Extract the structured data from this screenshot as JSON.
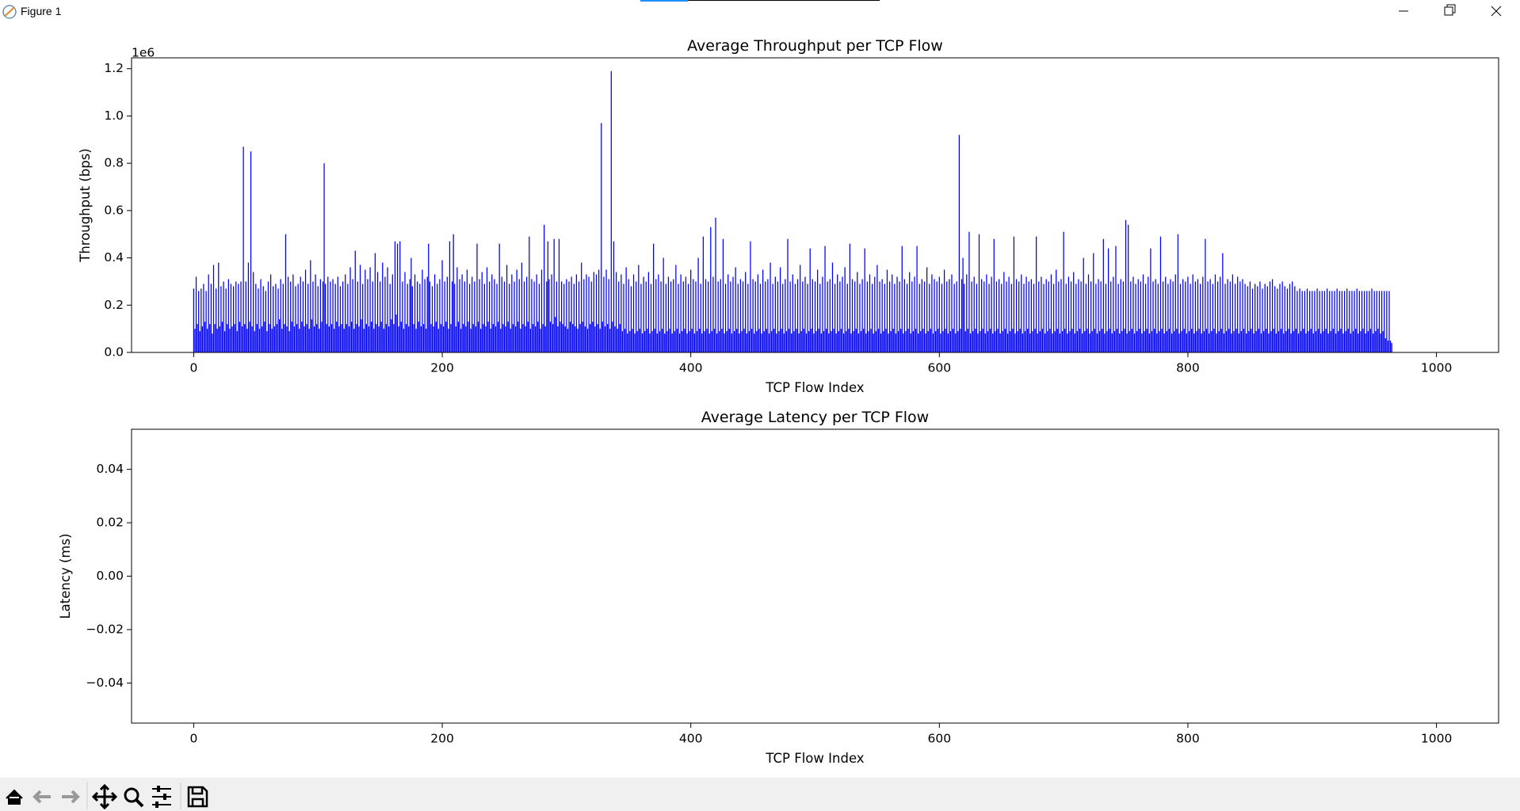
{
  "window": {
    "title": "Figure 1"
  },
  "chart_data": [
    {
      "type": "bar",
      "title": "Average Throughput per TCP Flow",
      "xlabel": "TCP Flow Index",
      "ylabel": "Throughput (bps)",
      "y_offset_label": "1e6",
      "color": "#0000ff",
      "xlim": [
        -50,
        1050
      ],
      "xticks": [
        0,
        200,
        400,
        600,
        800,
        1000
      ],
      "ylim": [
        0,
        1.246
      ],
      "yticks": [
        {
          "value": 0,
          "label": "0.0"
        },
        {
          "value": 0.2,
          "label": "0.2"
        },
        {
          "value": 0.4,
          "label": "0.4"
        },
        {
          "value": 0.6,
          "label": "0.6"
        },
        {
          "value": 0.8,
          "label": "0.8"
        },
        {
          "value": 1.0,
          "label": "1.0"
        },
        {
          "value": 1.2,
          "label": "1.2"
        }
      ],
      "values": [
        0.27,
        0.1,
        0.32,
        0.12,
        0.26,
        0.09,
        0.27,
        0.11,
        0.29,
        0.13,
        0.26,
        0.1,
        0.33,
        0.12,
        0.29,
        0.08,
        0.37,
        0.12,
        0.27,
        0.1,
        0.38,
        0.11,
        0.28,
        0.13,
        0.3,
        0.09,
        0.27,
        0.12,
        0.31,
        0.1,
        0.29,
        0.11,
        0.28,
        0.12,
        0.3,
        0.09,
        0.29,
        0.13,
        0.3,
        0.11,
        0.87,
        0.12,
        0.3,
        0.1,
        0.38,
        0.13,
        0.85,
        0.11,
        0.34,
        0.09,
        0.29,
        0.12,
        0.27,
        0.1,
        0.31,
        0.11,
        0.28,
        0.13,
        0.26,
        0.09,
        0.3,
        0.12,
        0.33,
        0.1,
        0.28,
        0.11,
        0.29,
        0.12,
        0.27,
        0.14,
        0.31,
        0.1,
        0.29,
        0.12,
        0.5,
        0.11,
        0.32,
        0.09,
        0.3,
        0.13,
        0.33,
        0.11,
        0.28,
        0.12,
        0.29,
        0.1,
        0.32,
        0.13,
        0.3,
        0.11,
        0.35,
        0.12,
        0.29,
        0.1,
        0.39,
        0.14,
        0.3,
        0.11,
        0.33,
        0.12,
        0.28,
        0.1,
        0.31,
        0.13,
        0.3,
        0.8,
        0.29,
        0.12,
        0.32,
        0.11,
        0.3,
        0.12,
        0.31,
        0.1,
        0.29,
        0.13,
        0.32,
        0.11,
        0.28,
        0.12,
        0.3,
        0.1,
        0.33,
        0.12,
        0.29,
        0.11,
        0.36,
        0.13,
        0.31,
        0.1,
        0.43,
        0.12,
        0.3,
        0.11,
        0.37,
        0.14,
        0.29,
        0.1,
        0.35,
        0.12,
        0.31,
        0.11,
        0.36,
        0.13,
        0.3,
        0.1,
        0.42,
        0.12,
        0.34,
        0.11,
        0.3,
        0.13,
        0.38,
        0.1,
        0.32,
        0.12,
        0.36,
        0.11,
        0.29,
        0.14,
        0.33,
        0.12,
        0.47,
        0.16,
        0.46,
        0.11,
        0.47,
        0.13,
        0.3,
        0.1,
        0.34,
        0.12,
        0.29,
        0.11,
        0.31,
        0.4,
        0.28,
        0.12,
        0.33,
        0.1,
        0.3,
        0.13,
        0.29,
        0.11,
        0.35,
        0.12,
        0.31,
        0.1,
        0.32,
        0.46,
        0.3,
        0.12,
        0.28,
        0.11,
        0.33,
        0.13,
        0.29,
        0.1,
        0.31,
        0.12,
        0.39,
        0.11,
        0.3,
        0.13,
        0.32,
        0.1,
        0.47,
        0.12,
        0.3,
        0.5,
        0.29,
        0.11,
        0.36,
        0.13,
        0.31,
        0.1,
        0.33,
        0.12,
        0.3,
        0.11,
        0.35,
        0.13,
        0.29,
        0.1,
        0.32,
        0.12,
        0.3,
        0.11,
        0.46,
        0.13,
        0.31,
        0.1,
        0.34,
        0.12,
        0.29,
        0.11,
        0.36,
        0.13,
        0.3,
        0.1,
        0.33,
        0.12,
        0.31,
        0.11,
        0.29,
        0.13,
        0.46,
        0.1,
        0.32,
        0.12,
        0.3,
        0.11,
        0.37,
        0.13,
        0.29,
        0.1,
        0.33,
        0.12,
        0.3,
        0.11,
        0.35,
        0.13,
        0.31,
        0.1,
        0.38,
        0.12,
        0.3,
        0.11,
        0.32,
        0.13,
        0.49,
        0.1,
        0.31,
        0.12,
        0.3,
        0.11,
        0.33,
        0.13,
        0.29,
        0.1,
        0.35,
        0.12,
        0.54,
        0.11,
        0.3,
        0.47,
        0.31,
        0.13,
        0.33,
        0.12,
        0.48,
        0.15,
        0.3,
        0.11,
        0.48,
        0.13,
        0.3,
        0.12,
        0.29,
        0.11,
        0.31,
        0.1,
        0.3,
        0.13,
        0.32,
        0.12,
        0.29,
        0.11,
        0.33,
        0.1,
        0.3,
        0.12,
        0.38,
        0.13,
        0.31,
        0.11,
        0.33,
        0.1,
        0.32,
        0.12,
        0.3,
        0.13,
        0.34,
        0.11,
        0.33,
        0.12,
        0.35,
        0.1,
        0.97,
        0.13,
        0.32,
        0.11,
        0.35,
        0.12,
        0.31,
        0.1,
        1.19,
        0.13,
        0.47,
        0.11,
        0.34,
        0.1,
        0.3,
        0.12,
        0.33,
        0.09,
        0.29,
        0.1,
        0.36,
        0.08,
        0.31,
        0.09,
        0.28,
        0.1,
        0.33,
        0.08,
        0.3,
        0.09,
        0.37,
        0.1,
        0.29,
        0.08,
        0.32,
        0.09,
        0.3,
        0.1,
        0.34,
        0.08,
        0.29,
        0.09,
        0.46,
        0.1,
        0.31,
        0.08,
        0.33,
        0.09,
        0.3,
        0.1,
        0.4,
        0.08,
        0.29,
        0.09,
        0.32,
        0.1,
        0.3,
        0.08,
        0.31,
        0.09,
        0.37,
        0.1,
        0.29,
        0.08,
        0.33,
        0.09,
        0.3,
        0.1,
        0.32,
        0.08,
        0.29,
        0.09,
        0.35,
        0.1,
        0.31,
        0.08,
        0.3,
        0.09,
        0.4,
        0.1,
        0.29,
        0.08,
        0.49,
        0.09,
        0.31,
        0.1,
        0.3,
        0.08,
        0.53,
        0.09,
        0.32,
        0.1,
        0.57,
        0.08,
        0.3,
        0.09,
        0.31,
        0.1,
        0.48,
        0.08,
        0.29,
        0.09,
        0.33,
        0.1,
        0.3,
        0.08,
        0.32,
        0.09,
        0.36,
        0.1,
        0.29,
        0.08,
        0.31,
        0.09,
        0.3,
        0.1,
        0.34,
        0.08,
        0.29,
        0.09,
        0.47,
        0.1,
        0.31,
        0.08,
        0.3,
        0.09,
        0.33,
        0.1,
        0.29,
        0.08,
        0.35,
        0.09,
        0.3,
        0.1,
        0.31,
        0.08,
        0.38,
        0.09,
        0.29,
        0.1,
        0.32,
        0.08,
        0.3,
        0.09,
        0.36,
        0.1,
        0.29,
        0.08,
        0.31,
        0.09,
        0.48,
        0.1,
        0.3,
        0.08,
        0.33,
        0.09,
        0.29,
        0.1,
        0.31,
        0.08,
        0.37,
        0.09,
        0.3,
        0.1,
        0.32,
        0.08,
        0.29,
        0.09,
        0.44,
        0.1,
        0.31,
        0.08,
        0.3,
        0.09,
        0.35,
        0.1,
        0.29,
        0.08,
        0.32,
        0.09,
        0.45,
        0.1,
        0.3,
        0.08,
        0.31,
        0.09,
        0.38,
        0.1,
        0.29,
        0.08,
        0.33,
        0.09,
        0.3,
        0.1,
        0.32,
        0.08,
        0.36,
        0.09,
        0.29,
        0.1,
        0.46,
        0.08,
        0.31,
        0.09,
        0.3,
        0.1,
        0.34,
        0.08,
        0.29,
        0.09,
        0.31,
        0.1,
        0.44,
        0.08,
        0.3,
        0.09,
        0.33,
        0.1,
        0.29,
        0.08,
        0.32,
        0.09,
        0.37,
        0.1,
        0.3,
        0.08,
        0.31,
        0.09,
        0.29,
        0.1,
        0.35,
        0.08,
        0.3,
        0.09,
        0.33,
        0.1,
        0.29,
        0.08,
        0.32,
        0.09,
        0.3,
        0.1,
        0.45,
        0.08,
        0.31,
        0.09,
        0.29,
        0.1,
        0.34,
        0.08,
        0.3,
        0.09,
        0.32,
        0.1,
        0.45,
        0.08,
        0.29,
        0.09,
        0.31,
        0.1,
        0.3,
        0.08,
        0.36,
        0.09,
        0.29,
        0.1,
        0.33,
        0.08,
        0.31,
        0.09,
        0.3,
        0.1,
        0.32,
        0.08,
        0.29,
        0.09,
        0.35,
        0.1,
        0.3,
        0.08,
        0.31,
        0.09,
        0.33,
        0.1,
        0.29,
        0.08,
        0.3,
        0.09,
        0.92,
        0.1,
        0.31,
        0.4,
        0.29,
        0.09,
        0.33,
        0.1,
        0.51,
        0.08,
        0.3,
        0.09,
        0.32,
        0.1,
        0.29,
        0.08,
        0.5,
        0.09,
        0.31,
        0.1,
        0.3,
        0.08,
        0.33,
        0.09,
        0.29,
        0.1,
        0.32,
        0.08,
        0.48,
        0.09,
        0.3,
        0.1,
        0.31,
        0.08,
        0.29,
        0.09,
        0.34,
        0.1,
        0.3,
        0.08,
        0.32,
        0.09,
        0.29,
        0.1,
        0.49,
        0.08,
        0.31,
        0.09,
        0.3,
        0.1,
        0.33,
        0.08,
        0.29,
        0.09,
        0.32,
        0.1,
        0.3,
        0.08,
        0.31,
        0.09,
        0.29,
        0.1,
        0.49,
        0.08,
        0.3,
        0.09,
        0.32,
        0.1,
        0.29,
        0.08,
        0.31,
        0.09,
        0.3,
        0.1,
        0.33,
        0.08,
        0.29,
        0.09,
        0.35,
        0.1,
        0.3,
        0.08,
        0.31,
        0.09,
        0.51,
        0.1,
        0.29,
        0.08,
        0.32,
        0.09,
        0.3,
        0.1,
        0.34,
        0.08,
        0.29,
        0.09,
        0.31,
        0.1,
        0.3,
        0.08,
        0.4,
        0.09,
        0.29,
        0.1,
        0.33,
        0.08,
        0.3,
        0.09,
        0.42,
        0.1,
        0.29,
        0.08,
        0.31,
        0.09,
        0.3,
        0.1,
        0.48,
        0.08,
        0.29,
        0.09,
        0.44,
        0.1,
        0.3,
        0.08,
        0.32,
        0.09,
        0.45,
        0.1,
        0.29,
        0.08,
        0.31,
        0.09,
        0.3,
        0.1,
        0.56,
        0.08,
        0.54,
        0.09,
        0.3,
        0.1,
        0.32,
        0.08,
        0.29,
        0.09,
        0.31,
        0.1,
        0.3,
        0.08,
        0.33,
        0.09,
        0.29,
        0.1,
        0.32,
        0.08,
        0.44,
        0.09,
        0.3,
        0.1,
        0.31,
        0.08,
        0.29,
        0.09,
        0.49,
        0.1,
        0.3,
        0.08,
        0.32,
        0.09,
        0.29,
        0.1,
        0.31,
        0.08,
        0.3,
        0.09,
        0.33,
        0.1,
        0.5,
        0.08,
        0.29,
        0.09,
        0.31,
        0.1,
        0.3,
        0.08,
        0.32,
        0.09,
        0.29,
        0.1,
        0.33,
        0.08,
        0.3,
        0.09,
        0.31,
        0.1,
        0.29,
        0.08,
        0.32,
        0.09,
        0.48,
        0.1,
        0.3,
        0.08,
        0.31,
        0.09,
        0.29,
        0.1,
        0.33,
        0.08,
        0.3,
        0.09,
        0.32,
        0.1,
        0.42,
        0.08,
        0.29,
        0.09,
        0.31,
        0.1,
        0.3,
        0.08,
        0.33,
        0.09,
        0.29,
        0.1,
        0.32,
        0.08,
        0.3,
        0.09,
        0.31,
        0.1,
        0.29,
        0.08,
        0.28,
        0.09,
        0.3,
        0.1,
        0.27,
        0.08,
        0.29,
        0.09,
        0.28,
        0.1,
        0.3,
        0.08,
        0.27,
        0.09,
        0.29,
        0.1,
        0.28,
        0.08,
        0.3,
        0.09,
        0.31,
        0.1,
        0.28,
        0.08,
        0.27,
        0.09,
        0.29,
        0.1,
        0.3,
        0.08,
        0.28,
        0.09,
        0.27,
        0.1,
        0.29,
        0.08,
        0.3,
        0.09,
        0.28,
        0.1,
        0.26,
        0.08,
        0.27,
        0.09,
        0.26,
        0.1,
        0.26,
        0.08,
        0.27,
        0.09,
        0.26,
        0.1,
        0.26,
        0.08,
        0.26,
        0.09,
        0.27,
        0.1,
        0.26,
        0.08,
        0.26,
        0.09,
        0.26,
        0.1,
        0.27,
        0.08,
        0.26,
        0.09,
        0.26,
        0.1,
        0.26,
        0.08,
        0.27,
        0.09,
        0.26,
        0.1,
        0.26,
        0.08,
        0.26,
        0.09,
        0.27,
        0.1,
        0.26,
        0.08,
        0.26,
        0.09,
        0.26,
        0.1,
        0.27,
        0.08,
        0.26,
        0.09,
        0.26,
        0.1,
        0.26,
        0.08,
        0.26,
        0.09,
        0.26,
        0.1,
        0.27,
        0.08,
        0.26,
        0.09,
        0.26,
        0.1,
        0.26,
        0.08,
        0.26,
        0.09,
        0.26,
        0.06,
        0.26,
        0.05,
        0.26,
        0.05,
        0.04
      ]
    },
    {
      "type": "bar",
      "title": "Average Latency per TCP Flow",
      "xlabel": "TCP Flow Index",
      "ylabel": "Latency (ms)",
      "color": "#0000ff",
      "xlim": [
        -50,
        1050
      ],
      "xticks": [
        0,
        200,
        400,
        600,
        800,
        1000
      ],
      "ylim": [
        -0.055,
        0.055
      ],
      "yticks": [
        {
          "value": -0.04,
          "label": "−0.04"
        },
        {
          "value": -0.02,
          "label": "−0.02"
        },
        {
          "value": 0,
          "label": "0.00"
        },
        {
          "value": 0.02,
          "label": "0.02"
        },
        {
          "value": 0.04,
          "label": "0.04"
        }
      ],
      "values": []
    }
  ]
}
